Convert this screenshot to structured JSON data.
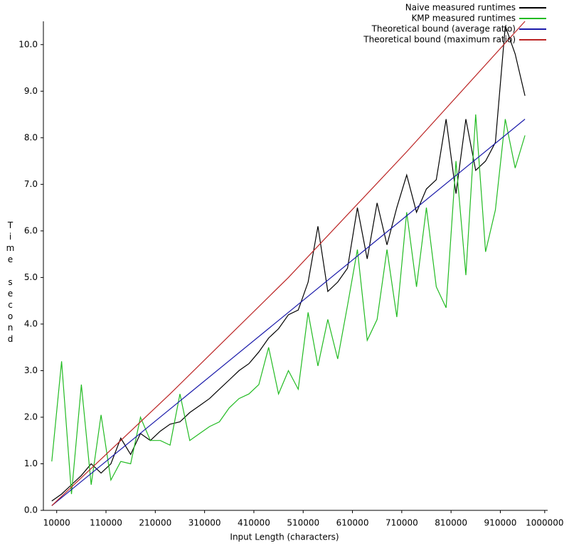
{
  "chart_data": {
    "type": "line",
    "x_label": "Input Length (characters)",
    "y_label": "Time second",
    "x": [
      0,
      20000,
      40000,
      60000,
      80000,
      100000,
      120000,
      140000,
      160000,
      180000,
      200000,
      220000,
      240000,
      260000,
      280000,
      300000,
      320000,
      340000,
      360000,
      380000,
      400000,
      420000,
      440000,
      460000,
      480000,
      500000,
      520000,
      540000,
      560000,
      580000,
      600000,
      620000,
      640000,
      660000,
      680000,
      700000,
      720000,
      740000,
      760000,
      780000,
      800000,
      820000,
      840000,
      860000,
      880000,
      900000,
      920000,
      940000,
      960000
    ],
    "series": [
      {
        "name": "Naive measured runtimes",
        "color": "#000000",
        "values": [
          0.2,
          0.35,
          0.55,
          0.75,
          1.0,
          0.8,
          1.0,
          1.55,
          1.2,
          1.65,
          1.5,
          1.7,
          1.85,
          1.9,
          2.1,
          2.25,
          2.4,
          2.6,
          2.8,
          3.0,
          3.15,
          3.4,
          3.7,
          3.9,
          4.2,
          4.3,
          4.9,
          6.1,
          4.7,
          4.9,
          5.2,
          6.5,
          5.4,
          6.6,
          5.7,
          6.5,
          7.2,
          6.4,
          6.9,
          7.1,
          8.4,
          6.8,
          8.4,
          7.3,
          7.5,
          7.9,
          10.4,
          9.8,
          8.9
        ]
      },
      {
        "name": "KMP measured runtimes",
        "color": "#22bb22",
        "values": [
          1.05,
          3.2,
          0.35,
          2.7,
          0.55,
          2.05,
          0.65,
          1.05,
          1.0,
          2.0,
          1.5,
          1.5,
          1.4,
          2.5,
          1.5,
          1.65,
          1.8,
          1.9,
          2.2,
          2.4,
          2.5,
          2.7,
          3.5,
          2.5,
          3.0,
          2.6,
          4.25,
          3.1,
          4.1,
          3.25,
          4.4,
          5.6,
          3.65,
          4.1,
          5.6,
          4.15,
          6.4,
          4.8,
          6.5,
          4.8,
          4.35,
          7.5,
          5.05,
          8.5,
          5.55,
          6.45,
          8.4,
          7.35,
          8.05
        ]
      },
      {
        "name": "Theoretical bound (average ratio)",
        "color": "#1a1aaa",
        "values": [
          0.1,
          null,
          null,
          null,
          null,
          null,
          null,
          null,
          null,
          null,
          null,
          null,
          null,
          null,
          null,
          null,
          null,
          null,
          null,
          null,
          null,
          null,
          null,
          null,
          null,
          null,
          null,
          null,
          null,
          null,
          null,
          null,
          null,
          null,
          null,
          null,
          null,
          null,
          null,
          null,
          null,
          null,
          null,
          null,
          null,
          null,
          null,
          null,
          8.4
        ]
      },
      {
        "name": "Theoretical bound (maximum ratio)",
        "color": "#bb2222",
        "values": [
          0.1,
          null,
          null,
          null,
          null,
          null,
          null,
          null,
          null,
          null,
          null,
          null,
          2.5,
          null,
          null,
          null,
          null,
          null,
          null,
          null,
          null,
          null,
          null,
          null,
          5.0,
          null,
          null,
          null,
          null,
          null,
          null,
          null,
          null,
          null,
          null,
          null,
          7.7,
          null,
          null,
          null,
          null,
          null,
          null,
          null,
          null,
          null,
          null,
          null,
          10.5
        ]
      }
    ],
    "xlim": [
      -17000,
      1006000
    ],
    "xticks": [
      10000,
      110000,
      210000,
      310000,
      410000,
      510000,
      610000,
      710000,
      810000,
      910000,
      1000000
    ],
    "ylim": [
      0,
      10.5
    ],
    "yticks": [
      {
        "value": 0,
        "label": "0.0"
      },
      {
        "value": 1,
        "label": "1.0"
      },
      {
        "value": 2,
        "label": "2.0"
      },
      {
        "value": 3,
        "label": "3.0"
      },
      {
        "value": 4,
        "label": "4.0"
      },
      {
        "value": 5,
        "label": "5.0"
      },
      {
        "value": 6,
        "label": "6.0"
      },
      {
        "value": 7,
        "label": "7.0"
      },
      {
        "value": 8,
        "label": "8.0"
      },
      {
        "value": 9,
        "label": "9.0"
      },
      {
        "value": 10,
        "label": "10.0"
      }
    ],
    "legend": "top-right"
  }
}
